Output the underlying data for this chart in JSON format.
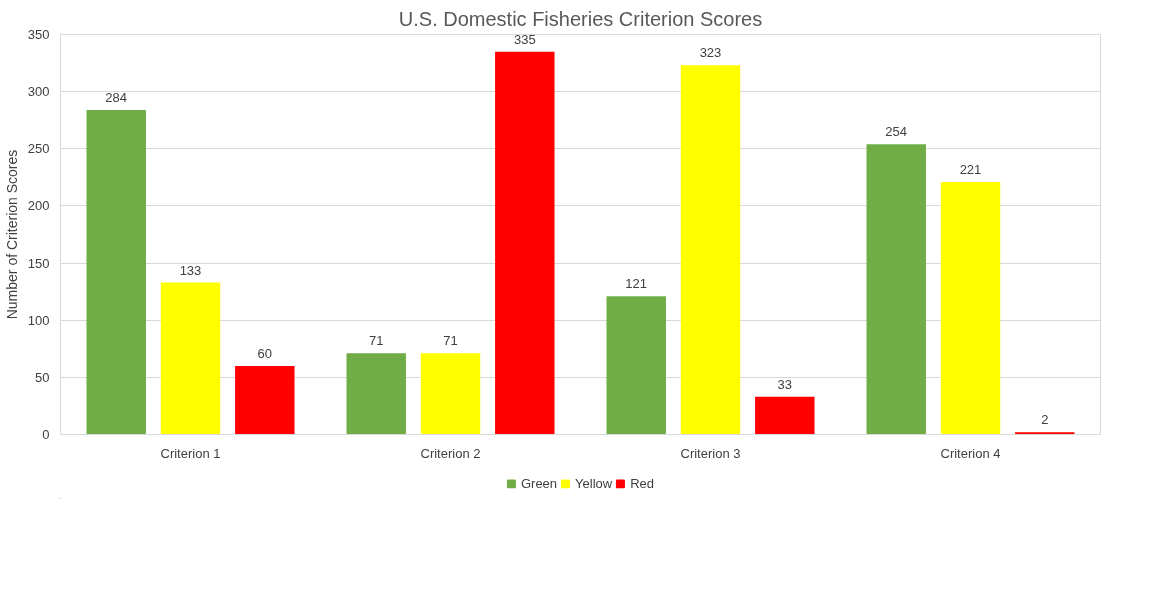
{
  "chart_data": {
    "type": "bar",
    "title": "U.S. Domestic Fisheries Criterion Scores",
    "ylabel": "Number of Criterion Scores",
    "categories": [
      "Criterion 1",
      "Criterion 2",
      "Criterion 3",
      "Criterion 4"
    ],
    "series": [
      {
        "name": "Green",
        "color": "#70ad47",
        "values": [
          284,
          71,
          121,
          254
        ]
      },
      {
        "name": "Yellow",
        "color": "#ffff00",
        "values": [
          133,
          71,
          323,
          221
        ]
      },
      {
        "name": "Red",
        "color": "#ff0000",
        "values": [
          60,
          335,
          33,
          2
        ]
      }
    ],
    "ylim": [
      0,
      350
    ],
    "yticks": [
      0,
      50,
      100,
      150,
      200,
      250,
      300,
      350
    ],
    "grid": "y",
    "legend": "bottom",
    "data_labels": true
  }
}
